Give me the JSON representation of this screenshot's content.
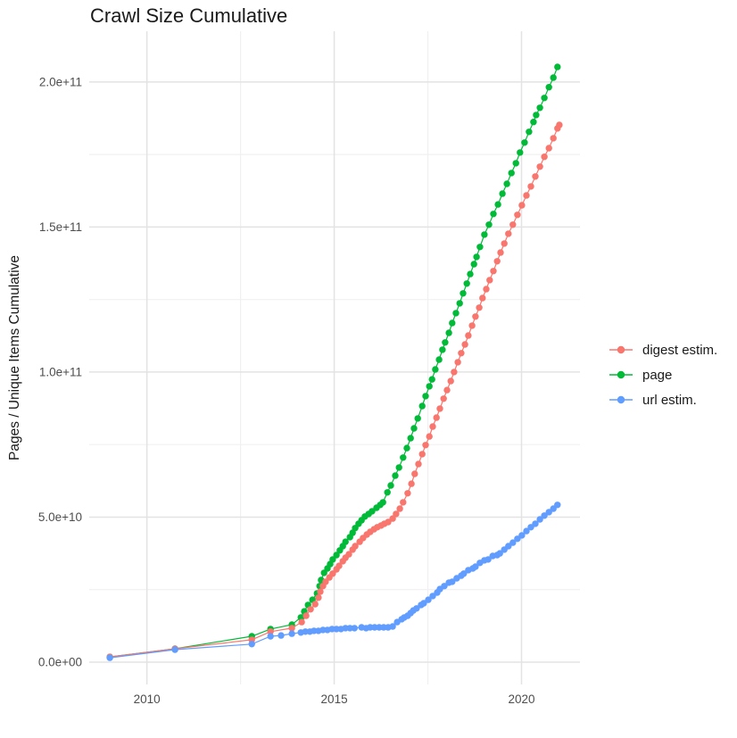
{
  "chart_data": {
    "type": "scatter",
    "title": "Crawl Size Cumulative",
    "xlabel": "",
    "ylabel": "Pages / Unique Items Cumulative",
    "legend_position": "right",
    "grid": {
      "major_color": "#e3e3e3",
      "minor_color": "#f0f0f0"
    },
    "xlim": [
      2008.46,
      2021.56
    ],
    "ylim_e9": [
      -7.7,
      217.5
    ],
    "y_value_unit": 1000000000,
    "x_ticks": [
      {
        "value": 2010,
        "label": "2010"
      },
      {
        "value": 2015,
        "label": "2015"
      },
      {
        "value": 2020,
        "label": "2020"
      }
    ],
    "x_minor_ticks": [
      2012.5,
      2017.5
    ],
    "y_ticks": [
      {
        "value": 0,
        "label": "0.0e+00"
      },
      {
        "value": 50,
        "label": "5.0e+10"
      },
      {
        "value": 100,
        "label": "1.0e+11"
      },
      {
        "value": 150,
        "label": "1.5e+11"
      },
      {
        "value": 200,
        "label": "2.0e+11"
      }
    ],
    "y_minor_ticks": [
      25,
      75,
      125,
      175
    ],
    "series": [
      {
        "name": "digest estim.",
        "color": "#F8766D",
        "points": [
          [
            2009.01,
            1.8
          ],
          [
            2010.75,
            4.6
          ],
          [
            2012.8,
            7.7
          ],
          [
            2013.3,
            10.5
          ],
          [
            2013.87,
            11.7
          ],
          [
            2014.13,
            13.8
          ],
          [
            2014.25,
            16.0
          ],
          [
            2014.37,
            18.2
          ],
          [
            2014.49,
            20.0
          ],
          [
            2014.58,
            22.2
          ],
          [
            2014.63,
            24.3
          ],
          [
            2014.7,
            26.2
          ],
          [
            2014.77,
            27.7
          ],
          [
            2014.87,
            29.2
          ],
          [
            2014.96,
            30.5
          ],
          [
            2015.06,
            32.0
          ],
          [
            2015.13,
            33.2
          ],
          [
            2015.23,
            34.8
          ],
          [
            2015.3,
            36.0
          ],
          [
            2015.39,
            37.2
          ],
          [
            2015.49,
            38.8
          ],
          [
            2015.56,
            40.0
          ],
          [
            2015.68,
            41.5
          ],
          [
            2015.77,
            42.8
          ],
          [
            2015.87,
            44.0
          ],
          [
            2015.96,
            44.9
          ],
          [
            2016.06,
            45.8
          ],
          [
            2016.15,
            46.5
          ],
          [
            2016.25,
            47.1
          ],
          [
            2016.34,
            47.7
          ],
          [
            2016.44,
            48.3
          ],
          [
            2016.56,
            49.5
          ],
          [
            2016.65,
            51.1
          ],
          [
            2016.75,
            52.9
          ],
          [
            2016.84,
            55.1
          ],
          [
            2016.96,
            58.2
          ],
          [
            2017.06,
            61.5
          ],
          [
            2017.15,
            64.9
          ],
          [
            2017.25,
            68.3
          ],
          [
            2017.35,
            71.7
          ],
          [
            2017.44,
            74.8
          ],
          [
            2017.54,
            77.8
          ],
          [
            2017.63,
            81.2
          ],
          [
            2017.73,
            84.3
          ],
          [
            2017.82,
            87.4
          ],
          [
            2017.92,
            90.8
          ],
          [
            2018.01,
            93.8
          ],
          [
            2018.11,
            96.9
          ],
          [
            2018.2,
            100.0
          ],
          [
            2018.3,
            103.4
          ],
          [
            2018.39,
            106.5
          ],
          [
            2018.49,
            109.5
          ],
          [
            2018.58,
            112.6
          ],
          [
            2018.68,
            116.0
          ],
          [
            2018.77,
            119.1
          ],
          [
            2018.87,
            122.2
          ],
          [
            2018.96,
            125.5
          ],
          [
            2019.06,
            128.6
          ],
          [
            2019.15,
            131.7
          ],
          [
            2019.25,
            134.8
          ],
          [
            2019.35,
            138.2
          ],
          [
            2019.44,
            141.2
          ],
          [
            2019.54,
            144.3
          ],
          [
            2019.65,
            147.7
          ],
          [
            2019.77,
            150.8
          ],
          [
            2019.89,
            154.2
          ],
          [
            2020.01,
            157.5
          ],
          [
            2020.13,
            160.9
          ],
          [
            2020.25,
            164.0
          ],
          [
            2020.37,
            167.4
          ],
          [
            2020.49,
            170.8
          ],
          [
            2020.61,
            174.2
          ],
          [
            2020.73,
            177.2
          ],
          [
            2020.85,
            180.6
          ],
          [
            2020.96,
            184.0
          ],
          [
            2021.01,
            185.2
          ]
        ]
      },
      {
        "name": "page",
        "color": "#00BA38",
        "points": [
          [
            2009.01,
            1.8
          ],
          [
            2010.75,
            4.6
          ],
          [
            2012.8,
            8.9
          ],
          [
            2013.3,
            11.4
          ],
          [
            2013.87,
            12.9
          ],
          [
            2014.11,
            15.4
          ],
          [
            2014.2,
            17.5
          ],
          [
            2014.3,
            19.7
          ],
          [
            2014.42,
            21.5
          ],
          [
            2014.54,
            23.7
          ],
          [
            2014.61,
            26.2
          ],
          [
            2014.65,
            28.3
          ],
          [
            2014.73,
            30.8
          ],
          [
            2014.82,
            32.3
          ],
          [
            2014.89,
            33.8
          ],
          [
            2014.96,
            35.4
          ],
          [
            2015.06,
            36.9
          ],
          [
            2015.15,
            38.5
          ],
          [
            2015.23,
            40.0
          ],
          [
            2015.3,
            41.5
          ],
          [
            2015.42,
            43.1
          ],
          [
            2015.49,
            44.6
          ],
          [
            2015.56,
            46.2
          ],
          [
            2015.65,
            47.7
          ],
          [
            2015.73,
            48.9
          ],
          [
            2015.82,
            50.2
          ],
          [
            2015.92,
            51.1
          ],
          [
            2016.01,
            52.0
          ],
          [
            2016.13,
            53.2
          ],
          [
            2016.23,
            54.2
          ],
          [
            2016.3,
            55.1
          ],
          [
            2016.42,
            58.5
          ],
          [
            2016.51,
            60.9
          ],
          [
            2016.63,
            64.3
          ],
          [
            2016.73,
            67.1
          ],
          [
            2016.84,
            70.5
          ],
          [
            2016.94,
            73.8
          ],
          [
            2017.04,
            77.2
          ],
          [
            2017.13,
            80.6
          ],
          [
            2017.23,
            84.0
          ],
          [
            2017.35,
            88.3
          ],
          [
            2017.44,
            91.7
          ],
          [
            2017.54,
            95.1
          ],
          [
            2017.61,
            97.5
          ],
          [
            2017.7,
            100.9
          ],
          [
            2017.8,
            104.3
          ],
          [
            2017.89,
            107.7
          ],
          [
            2017.96,
            110.2
          ],
          [
            2018.06,
            113.5
          ],
          [
            2018.15,
            116.9
          ],
          [
            2018.25,
            120.3
          ],
          [
            2018.35,
            123.7
          ],
          [
            2018.44,
            127.1
          ],
          [
            2018.54,
            130.5
          ],
          [
            2018.63,
            133.8
          ],
          [
            2018.73,
            137.2
          ],
          [
            2018.8,
            139.7
          ],
          [
            2018.89,
            143.1
          ],
          [
            2019.01,
            147.4
          ],
          [
            2019.13,
            150.8
          ],
          [
            2019.25,
            154.5
          ],
          [
            2019.37,
            157.8
          ],
          [
            2019.49,
            161.5
          ],
          [
            2019.61,
            164.9
          ],
          [
            2019.73,
            168.6
          ],
          [
            2019.85,
            172.0
          ],
          [
            2019.96,
            175.7
          ],
          [
            2020.08,
            179.1
          ],
          [
            2020.2,
            182.8
          ],
          [
            2020.32,
            186.2
          ],
          [
            2020.39,
            188.6
          ],
          [
            2020.49,
            191.1
          ],
          [
            2020.61,
            194.5
          ],
          [
            2020.73,
            198.2
          ],
          [
            2020.85,
            201.5
          ],
          [
            2020.96,
            205.2
          ]
        ]
      },
      {
        "name": "url estim.",
        "color": "#619CFF",
        "points": [
          [
            2009.01,
            1.5
          ],
          [
            2010.75,
            4.3
          ],
          [
            2012.8,
            6.2
          ],
          [
            2013.3,
            8.9
          ],
          [
            2013.58,
            9.2
          ],
          [
            2013.87,
            9.8
          ],
          [
            2014.11,
            10.2
          ],
          [
            2014.23,
            10.5
          ],
          [
            2014.35,
            10.5
          ],
          [
            2014.46,
            10.8
          ],
          [
            2014.58,
            10.8
          ],
          [
            2014.7,
            11.1
          ],
          [
            2014.82,
            11.1
          ],
          [
            2014.94,
            11.4
          ],
          [
            2015.06,
            11.4
          ],
          [
            2015.18,
            11.4
          ],
          [
            2015.3,
            11.7
          ],
          [
            2015.42,
            11.7
          ],
          [
            2015.54,
            11.7
          ],
          [
            2015.73,
            12.0
          ],
          [
            2015.85,
            11.7
          ],
          [
            2015.96,
            12.0
          ],
          [
            2016.08,
            12.0
          ],
          [
            2016.2,
            12.0
          ],
          [
            2016.32,
            12.0
          ],
          [
            2016.44,
            12.0
          ],
          [
            2016.56,
            12.3
          ],
          [
            2016.68,
            13.8
          ],
          [
            2016.8,
            14.8
          ],
          [
            2016.87,
            15.4
          ],
          [
            2016.96,
            16.0
          ],
          [
            2017.04,
            16.9
          ],
          [
            2017.11,
            17.8
          ],
          [
            2017.2,
            18.5
          ],
          [
            2017.32,
            19.7
          ],
          [
            2017.39,
            20.3
          ],
          [
            2017.51,
            21.5
          ],
          [
            2017.63,
            22.8
          ],
          [
            2017.75,
            24.0
          ],
          [
            2017.82,
            25.2
          ],
          [
            2017.94,
            26.2
          ],
          [
            2018.06,
            27.4
          ],
          [
            2018.15,
            27.7
          ],
          [
            2018.27,
            28.9
          ],
          [
            2018.39,
            29.8
          ],
          [
            2018.46,
            30.5
          ],
          [
            2018.58,
            31.7
          ],
          [
            2018.7,
            32.3
          ],
          [
            2018.77,
            32.9
          ],
          [
            2018.89,
            34.2
          ],
          [
            2019.01,
            35.1
          ],
          [
            2019.11,
            35.4
          ],
          [
            2019.23,
            36.6
          ],
          [
            2019.35,
            36.9
          ],
          [
            2019.42,
            37.5
          ],
          [
            2019.54,
            38.8
          ],
          [
            2019.65,
            40.0
          ],
          [
            2019.77,
            41.2
          ],
          [
            2019.89,
            42.5
          ],
          [
            2020.01,
            43.7
          ],
          [
            2020.13,
            45.2
          ],
          [
            2020.25,
            46.5
          ],
          [
            2020.37,
            47.7
          ],
          [
            2020.49,
            49.2
          ],
          [
            2020.61,
            50.5
          ],
          [
            2020.73,
            51.7
          ],
          [
            2020.85,
            52.9
          ],
          [
            2020.96,
            54.2
          ]
        ]
      }
    ]
  }
}
